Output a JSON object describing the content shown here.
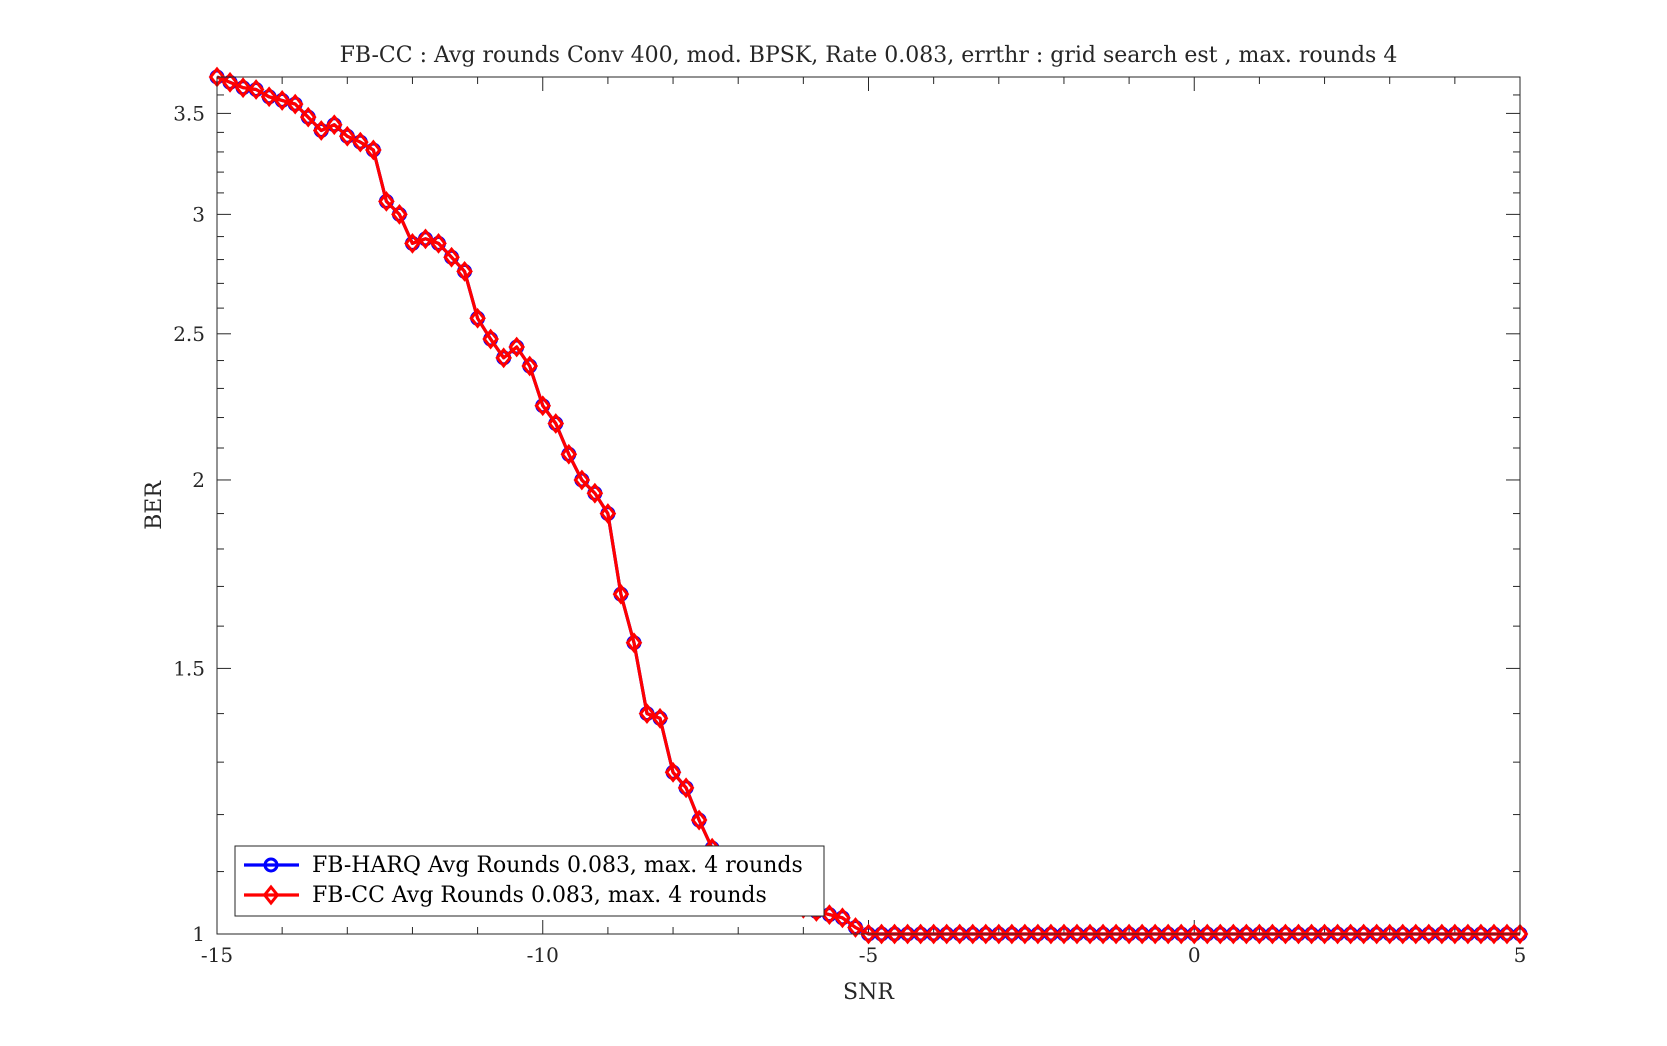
{
  "chart_data": {
    "type": "line",
    "title": "FB-CC : Avg rounds Conv 400, mod. BPSK, Rate 0.083, errthr : grid search est , max. rounds 4",
    "xlabel": "SNR",
    "ylabel": "BER",
    "xlim": [
      -15,
      5
    ],
    "ylim": [
      1,
      3.7
    ],
    "yscale": "log",
    "grid": false,
    "legend_position": "bottom-left",
    "xticks": [
      -15,
      -10,
      -5,
      0,
      5
    ],
    "xtick_labels": [
      "-15",
      "-10",
      "-5",
      "0",
      "5"
    ],
    "yticks": [
      1,
      1.5,
      2,
      2.5,
      3,
      3.5
    ],
    "ytick_labels": [
      "1",
      "1.5",
      "2",
      "2.5",
      "3",
      "3.5"
    ],
    "x": [
      -15,
      -14.8,
      -14.6,
      -14.4,
      -14.2,
      -14,
      -13.8,
      -13.6,
      -13.4,
      -13.2,
      -13,
      -12.8,
      -12.6,
      -12.4,
      -12.2,
      -12,
      -11.8,
      -11.6,
      -11.4,
      -11.2,
      -11,
      -10.8,
      -10.6,
      -10.4,
      -10.2,
      -10,
      -9.8,
      -9.6,
      -9.4,
      -9.2,
      -9,
      -8.8,
      -8.6,
      -8.4,
      -8.2,
      -8,
      -7.8,
      -7.6,
      -7.4,
      -7.2,
      -7,
      -6.8,
      -6.6,
      -6.4,
      -6.2,
      -6,
      -5.8,
      -5.6,
      -5.4,
      -5.2,
      -5,
      -4.8,
      -4.6,
      -4.4,
      -4.2,
      -4,
      -3.8,
      -3.6,
      -3.4,
      -3.2,
      -3,
      -2.8,
      -2.6,
      -2.4,
      -2.2,
      -2,
      -1.8,
      -1.6,
      -1.4,
      -1.2,
      -1,
      -0.8,
      -0.6,
      -0.4,
      -0.2,
      0,
      0.2,
      0.4,
      0.6,
      0.8,
      1,
      1.2,
      1.4,
      1.6,
      1.8,
      2,
      2.2,
      2.4,
      2.6,
      2.8,
      3,
      3.2,
      3.4,
      3.6,
      3.8,
      4,
      4.2,
      4.4,
      4.6,
      4.8,
      5
    ],
    "series": [
      {
        "name": "FB-HARQ Avg Rounds 0.083, max. 4 rounds",
        "color": "#0000ff",
        "marker": "circle",
        "values": [
          3.7,
          3.67,
          3.64,
          3.63,
          3.59,
          3.57,
          3.55,
          3.48,
          3.41,
          3.44,
          3.38,
          3.35,
          3.31,
          3.06,
          3.0,
          2.87,
          2.89,
          2.87,
          2.81,
          2.75,
          2.56,
          2.48,
          2.41,
          2.45,
          2.38,
          2.24,
          2.18,
          2.08,
          2.0,
          1.96,
          1.9,
          1.68,
          1.56,
          1.4,
          1.39,
          1.28,
          1.25,
          1.19,
          1.14,
          1.1,
          1.09,
          1.08,
          1.07,
          1.06,
          1.05,
          1.04,
          1.035,
          1.03,
          1.025,
          1.01,
          1.0,
          1.0,
          1.0,
          1.0,
          1.0,
          1.0,
          1.0,
          1.0,
          1.0,
          1.0,
          1.0,
          1.0,
          1.0,
          1.0,
          1.0,
          1.0,
          1.0,
          1.0,
          1.0,
          1.0,
          1.0,
          1.0,
          1.0,
          1.0,
          1.0,
          1.0,
          1.0,
          1.0,
          1.0,
          1.0,
          1.0,
          1.0,
          1.0,
          1.0,
          1.0,
          1.0,
          1.0,
          1.0,
          1.0,
          1.0,
          1.0,
          1.0,
          1.0,
          1.0,
          1.0,
          1.0,
          1.0,
          1.0,
          1.0,
          1.0,
          1.0
        ]
      },
      {
        "name": "FB-CC Avg Rounds 0.083, max. 4 rounds",
        "color": "#ff0000",
        "marker": "diamond",
        "values": [
          3.7,
          3.67,
          3.64,
          3.63,
          3.59,
          3.57,
          3.55,
          3.48,
          3.41,
          3.44,
          3.38,
          3.35,
          3.31,
          3.06,
          3.0,
          2.87,
          2.89,
          2.87,
          2.81,
          2.75,
          2.56,
          2.48,
          2.41,
          2.45,
          2.38,
          2.24,
          2.18,
          2.08,
          2.0,
          1.96,
          1.9,
          1.68,
          1.56,
          1.4,
          1.39,
          1.28,
          1.25,
          1.19,
          1.14,
          1.1,
          1.09,
          1.08,
          1.07,
          1.06,
          1.05,
          1.04,
          1.035,
          1.03,
          1.025,
          1.01,
          1.0,
          1.0,
          1.0,
          1.0,
          1.0,
          1.0,
          1.0,
          1.0,
          1.0,
          1.0,
          1.0,
          1.0,
          1.0,
          1.0,
          1.0,
          1.0,
          1.0,
          1.0,
          1.0,
          1.0,
          1.0,
          1.0,
          1.0,
          1.0,
          1.0,
          1.0,
          1.0,
          1.0,
          1.0,
          1.0,
          1.0,
          1.0,
          1.0,
          1.0,
          1.0,
          1.0,
          1.0,
          1.0,
          1.0,
          1.0,
          1.0,
          1.0,
          1.0,
          1.0,
          1.0,
          1.0,
          1.0,
          1.0,
          1.0,
          1.0,
          1.0
        ]
      }
    ]
  }
}
